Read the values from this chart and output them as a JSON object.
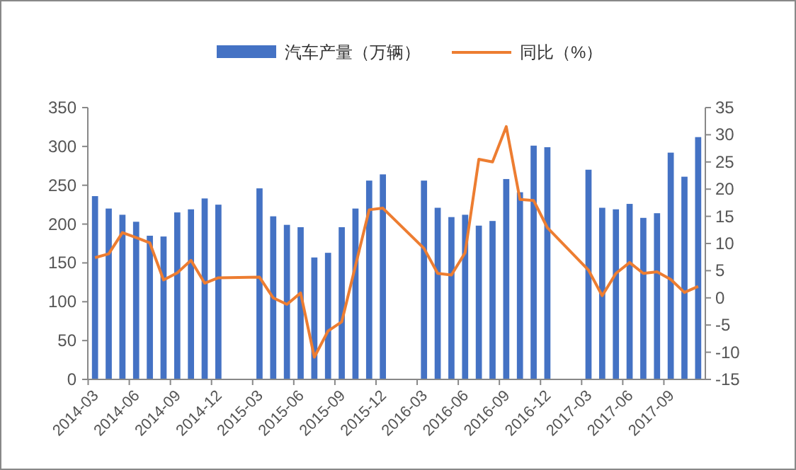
{
  "chart_data": {
    "type": "bar",
    "categories": [
      "2014-03",
      null,
      null,
      "2014-06",
      null,
      null,
      "2014-09",
      null,
      null,
      "2014-12",
      null,
      null,
      "2015-03",
      null,
      null,
      "2015-06",
      null,
      null,
      "2015-09",
      null,
      null,
      "2015-12",
      null,
      null,
      "2016-03",
      null,
      null,
      "2016-06",
      null,
      null,
      "2016-09",
      null,
      null,
      "2016-12",
      null,
      null,
      "2017-03",
      null,
      null,
      "2017-06",
      null,
      null,
      "2017-09",
      null,
      null
    ],
    "series": [
      {
        "name": "汽车产量（万辆）",
        "color": "#4472c4",
        "values": [
          236,
          220,
          212,
          203,
          185,
          184,
          215,
          219,
          233,
          225,
          null,
          null,
          246,
          210,
          199,
          196,
          157,
          163,
          196,
          220,
          256,
          264,
          null,
          null,
          256,
          221,
          209,
          212,
          198,
          204,
          258,
          241,
          301,
          299,
          null,
          null,
          270,
          221,
          219,
          226,
          208,
          214,
          292,
          261,
          312
        ]
      },
      {
        "name": "同比（%）",
        "type": "line",
        "axis": "y2",
        "color": "#ed7d31",
        "values": [
          7.4,
          8.1,
          12.0,
          11.1,
          10.1,
          3.3,
          4.6,
          6.9,
          2.7,
          3.7,
          null,
          null,
          3.8,
          0.0,
          -1.2,
          0.9,
          -10.9,
          -6.1,
          -4.4,
          5.9,
          16.2,
          16.5,
          null,
          null,
          9.1,
          4.5,
          4.2,
          8.3,
          25.5,
          25.0,
          31.5,
          18.1,
          17.9,
          12.9,
          null,
          null,
          5.1,
          0.4,
          4.5,
          6.5,
          4.5,
          4.8,
          3.4,
          1.0,
          2.1
        ]
      }
    ],
    "ylim": [
      0,
      350
    ],
    "yticks": [
      0,
      50,
      100,
      150,
      200,
      250,
      300,
      350
    ],
    "y2lim": [
      -15,
      35
    ],
    "y2ticks": [
      -15,
      -10,
      -5,
      0,
      5,
      10,
      15,
      20,
      25,
      30,
      35
    ],
    "grid": false,
    "legend": "top"
  }
}
